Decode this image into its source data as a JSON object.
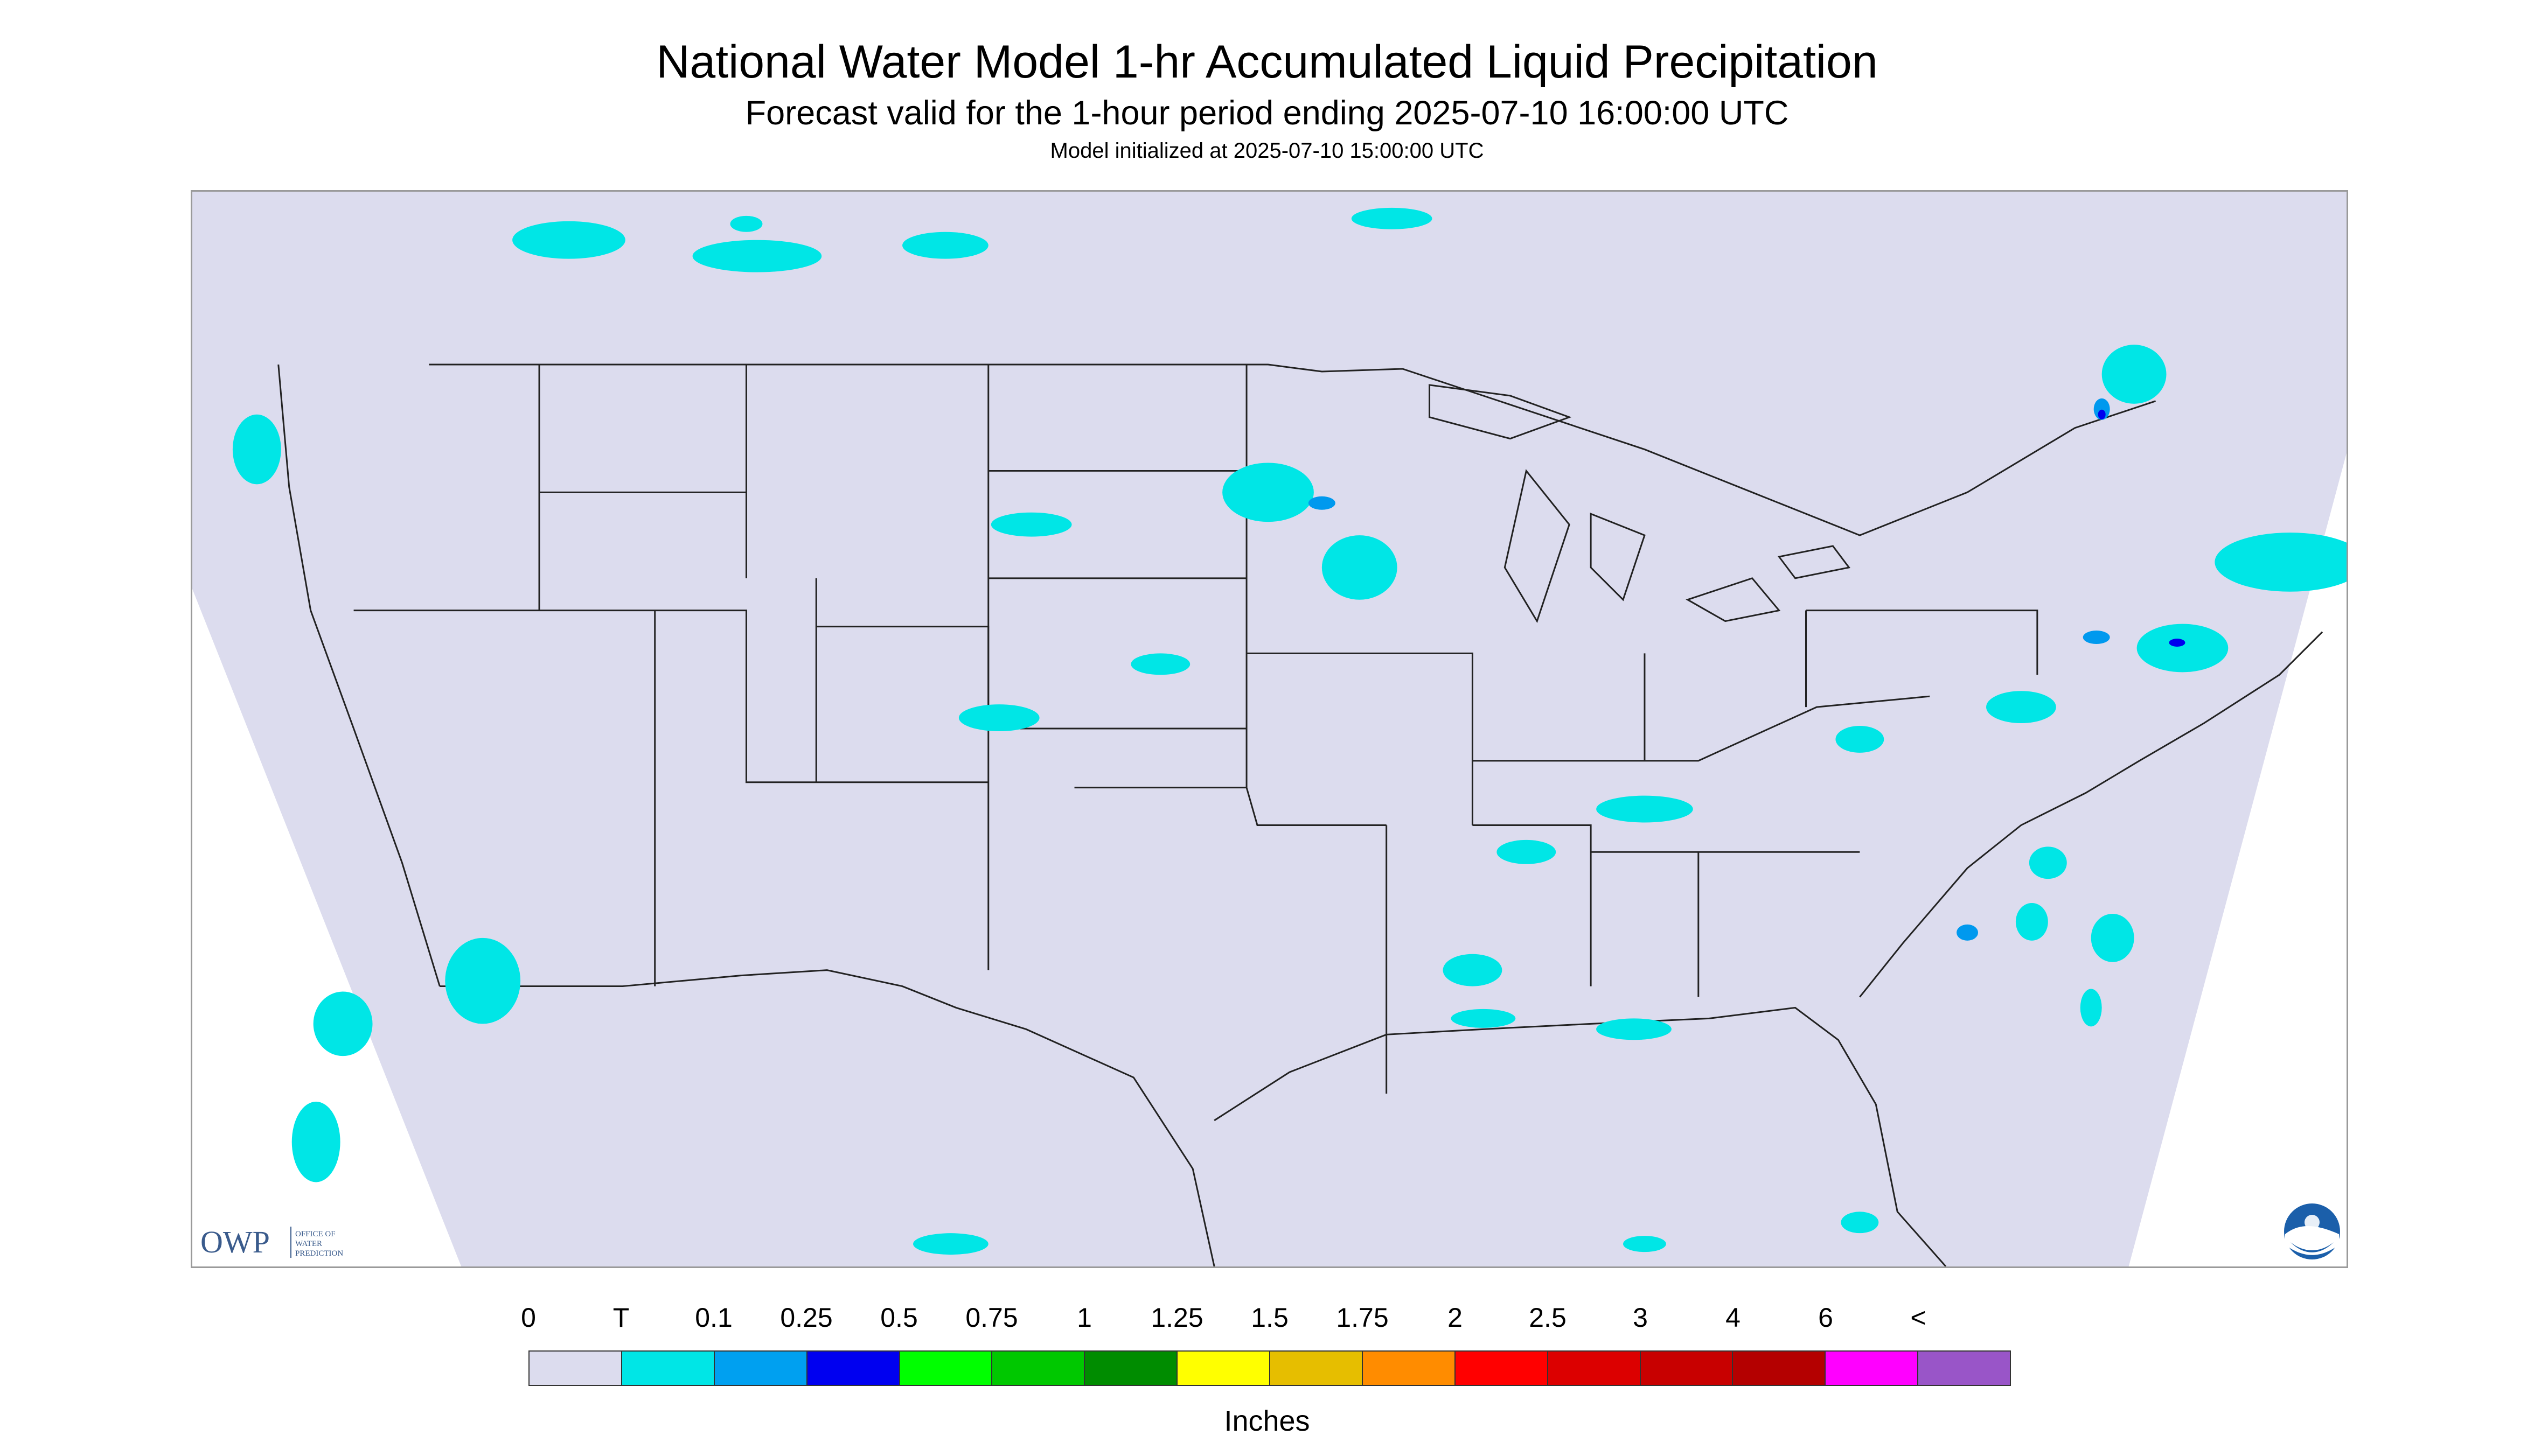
{
  "title": "National Water Model 1-hr Accumulated Liquid Precipitation",
  "subtitle": "Forecast valid for the 1-hour period ending 2025-07-10 16:00:00 UTC",
  "init_line": "Model initialized at 2025-07-10 15:00:00 UTC",
  "map": {
    "domain_fill": "#dcdcee",
    "outside_fill": "#ffffff",
    "boundary_color": "#222222",
    "precip_light": "#00e6e6",
    "precip_medium": "#0099ee",
    "precip_heavy": "#0000ee"
  },
  "logos": {
    "owp_mark": "OWP",
    "owp_text": [
      "OFFICE OF",
      "WATER",
      "PREDICTION"
    ],
    "noaa_icon": "noaa-logo-icon"
  },
  "legend": {
    "tick_labels": [
      "0",
      "T",
      "0.1",
      "0.25",
      "0.5",
      "0.75",
      "1",
      "1.25",
      "1.5",
      "1.75",
      "2",
      "2.5",
      "3",
      "4",
      "6",
      "<"
    ],
    "colors": [
      "#dcdcee",
      "#00e6e6",
      "#00a0f0",
      "#0000f0",
      "#00ff00",
      "#00c800",
      "#008c00",
      "#ffff00",
      "#e6be00",
      "#ff8c00",
      "#ff0000",
      "#dc0000",
      "#c80000",
      "#b40000",
      "#ff00ff",
      "#9955c8"
    ],
    "units": "Inches"
  }
}
